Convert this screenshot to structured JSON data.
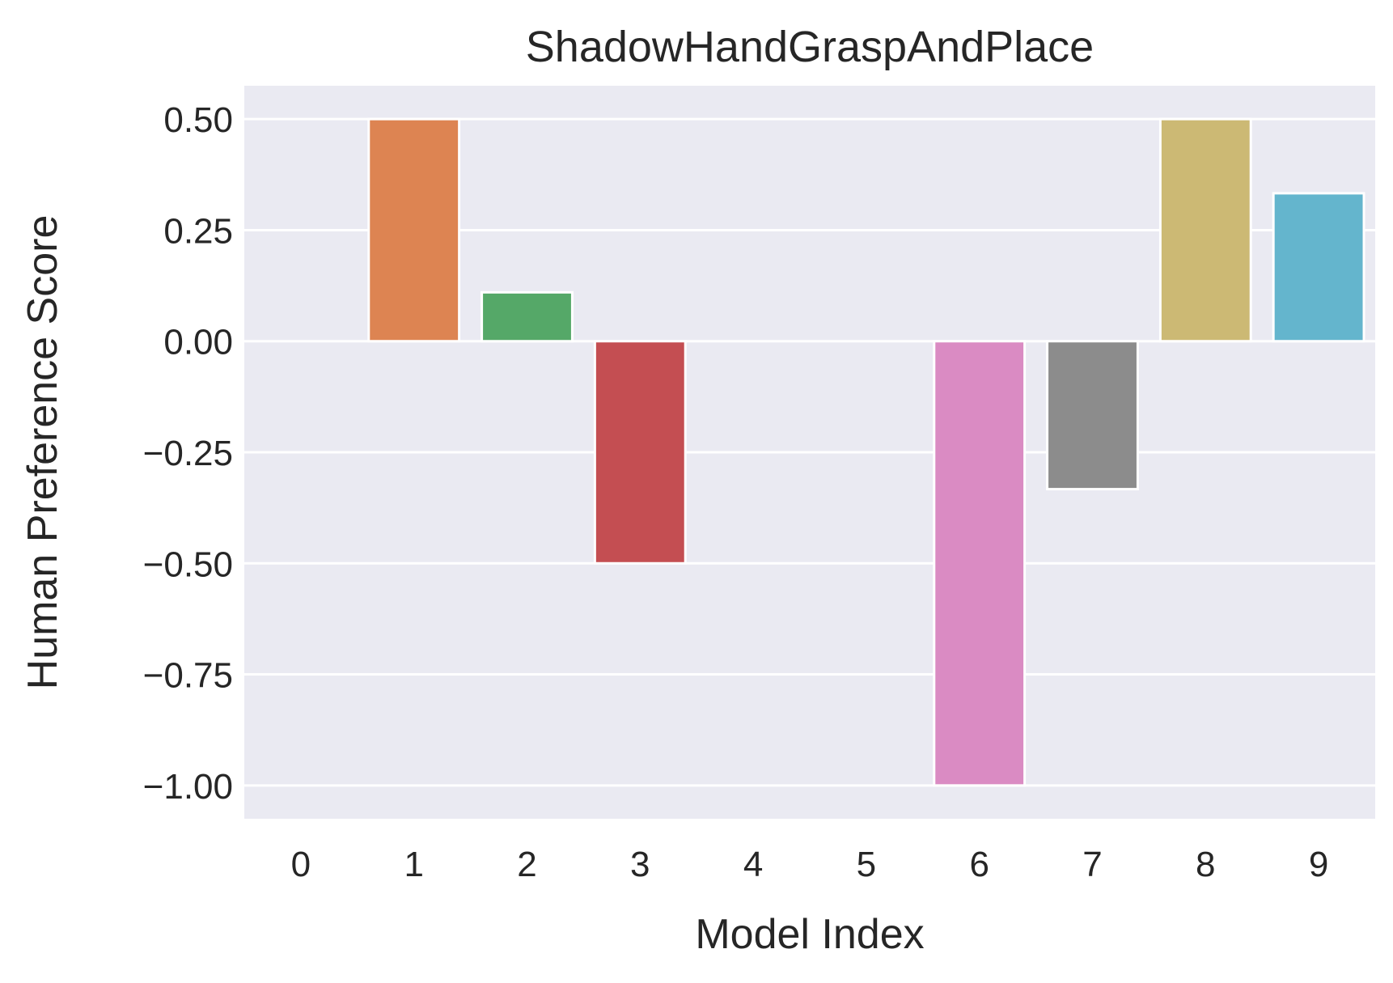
{
  "chart_data": {
    "type": "bar",
    "title": "ShadowHandGraspAndPlace",
    "xlabel": "Model Index",
    "ylabel": "Human Preference Score",
    "categories": [
      "0",
      "1",
      "2",
      "3",
      "4",
      "5",
      "6",
      "7",
      "8",
      "9"
    ],
    "values": [
      0.0,
      0.5,
      0.11,
      -0.5,
      0.0,
      0.0,
      -1.0,
      -0.333,
      0.5,
      0.333
    ],
    "colors": [
      "#4c72b0",
      "#dd8452",
      "#55a868",
      "#c44e52",
      "#8172b3",
      "#937860",
      "#da8bc3",
      "#8c8c8c",
      "#ccb974",
      "#64b5cd"
    ],
    "yticks": [
      0.5,
      0.25,
      0.0,
      -0.25,
      -0.5,
      -0.75,
      -1.0
    ],
    "ytick_labels": [
      "0.50",
      "0.25",
      "0.00",
      "−0.25",
      "−0.50",
      "−0.75",
      "−1.00"
    ],
    "ylim": [
      -1.075,
      0.575
    ],
    "grid": true,
    "background_color": "#eaeaf2",
    "grid_color": "#ffffff"
  }
}
